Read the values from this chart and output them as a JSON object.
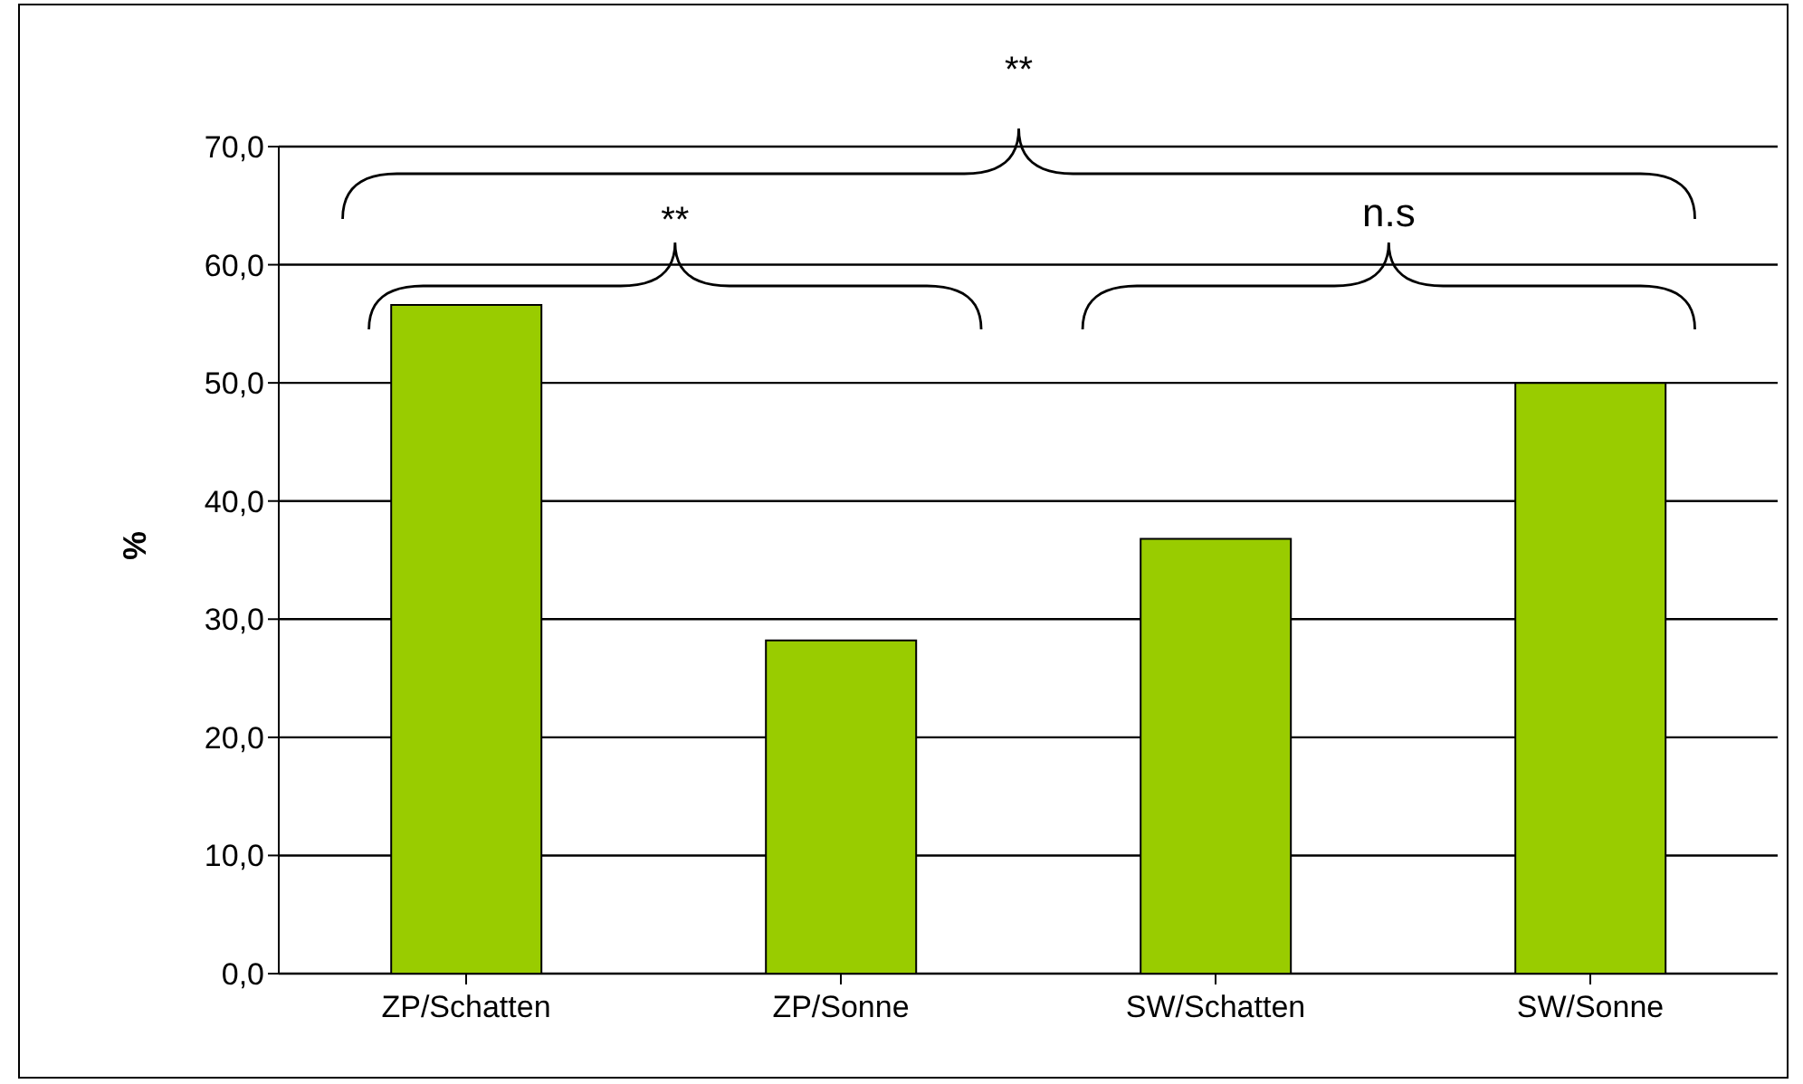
{
  "chart_data": {
    "type": "bar",
    "ylabel": "%",
    "categories": [
      "ZP/Schatten",
      "ZP/Sonne",
      "SW/Schatten",
      "SW/Sonne"
    ],
    "values": [
      56.6,
      28.2,
      36.8,
      50.0
    ],
    "color": "#99cc00",
    "ylim": [
      0,
      70
    ],
    "yticks": [
      {
        "value": 0,
        "label": "0,0"
      },
      {
        "value": 10,
        "label": "10,0"
      },
      {
        "value": 20,
        "label": "20,0"
      },
      {
        "value": 30,
        "label": "30,0"
      },
      {
        "value": 40,
        "label": "40,0"
      },
      {
        "value": 50,
        "label": "50,0"
      },
      {
        "value": 60,
        "label": "60,0"
      },
      {
        "value": 70,
        "label": "70,0"
      }
    ],
    "grid": "y",
    "legend": false,
    "annotations": [
      "**",
      "n.s",
      "**"
    ]
  }
}
